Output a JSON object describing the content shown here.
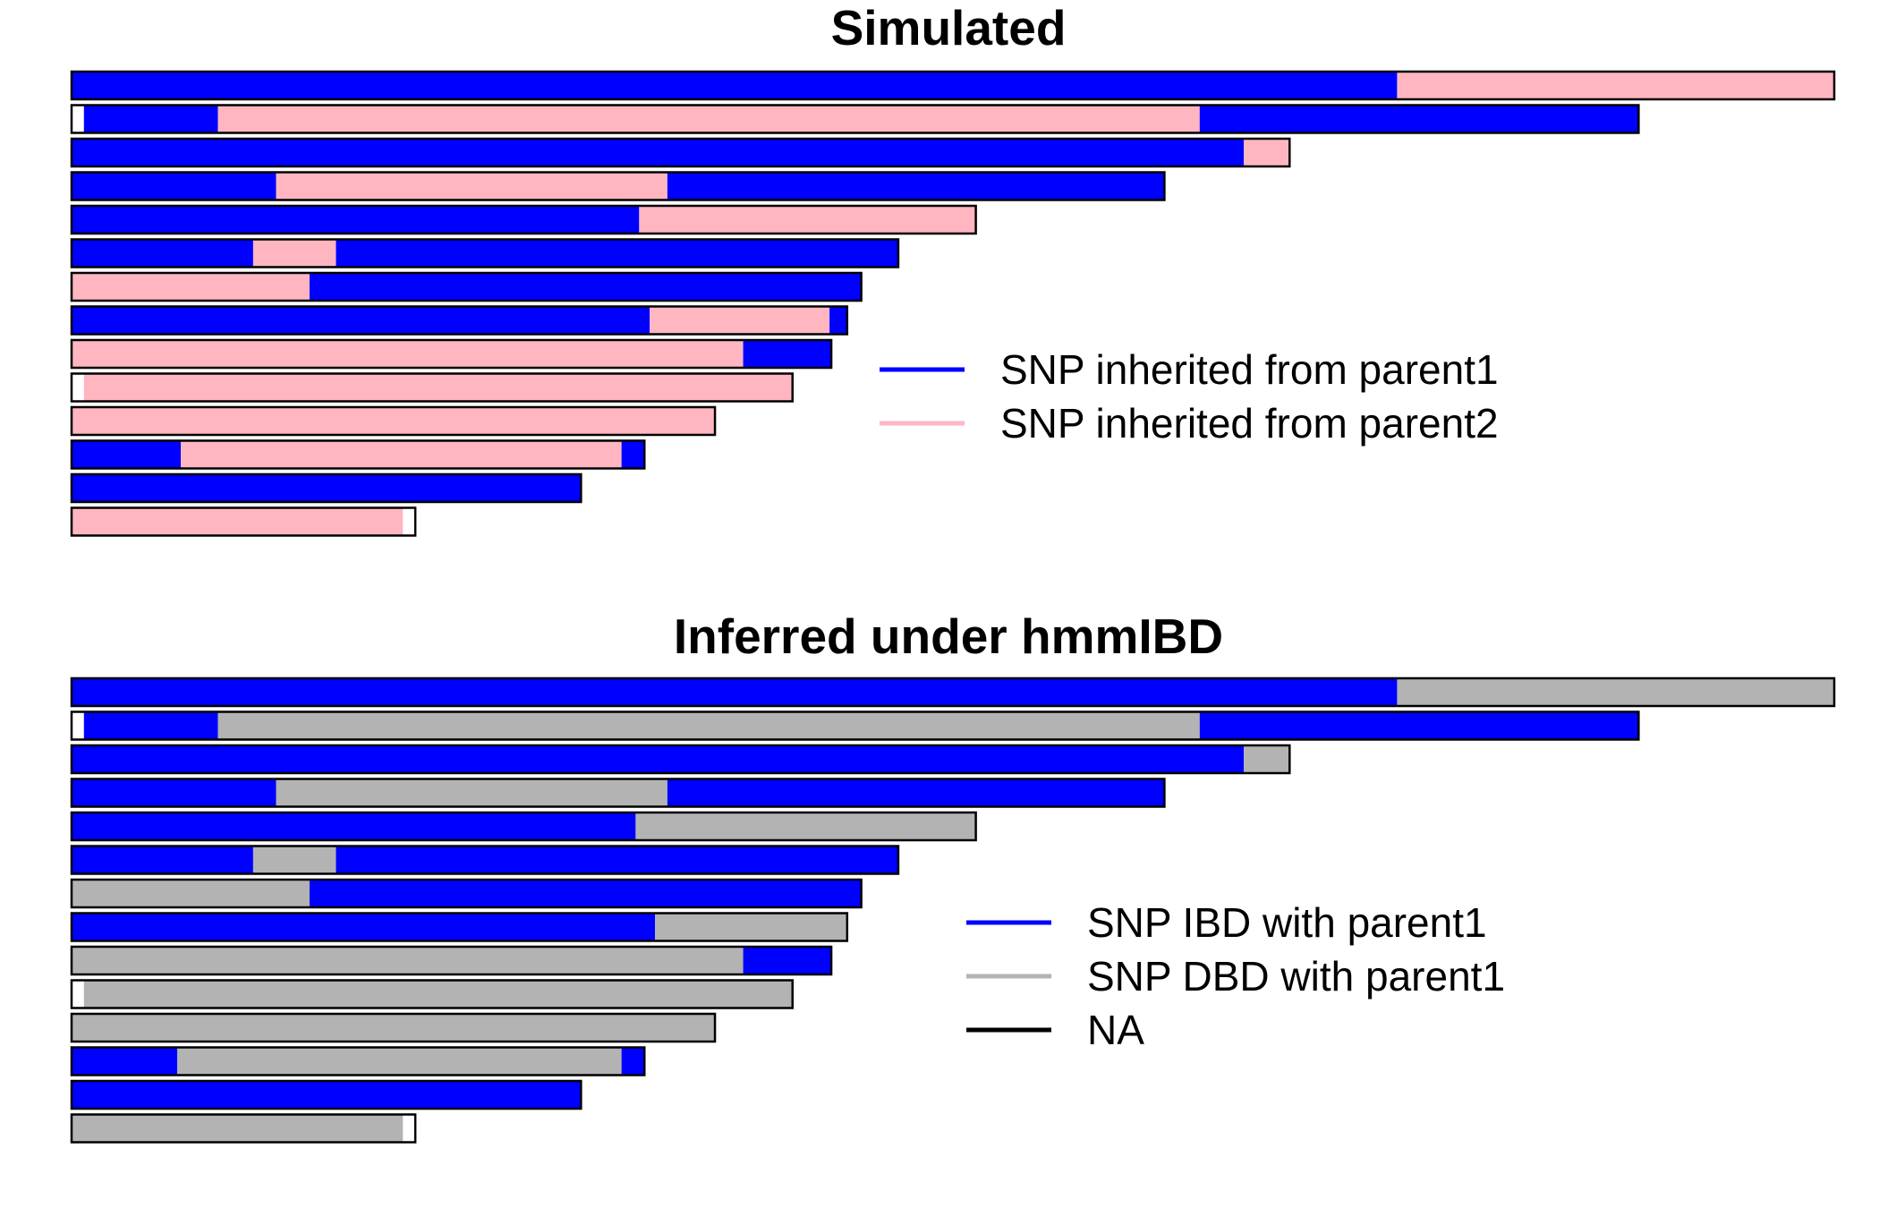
{
  "colors": {
    "parent1": "#0000FF",
    "parent2": "#FFB6C1",
    "dbd": "#B3B3B3",
    "na": "#FFFFFF",
    "outline": "#000000"
  },
  "chart_data": [
    {
      "type": "chromosome-painting",
      "title": "Simulated",
      "x_unit": "fraction of longest chromosome",
      "legend": [
        {
          "label": "SNP inherited from parent1",
          "color": "#0000FF"
        },
        {
          "label": "SNP inherited from parent2",
          "color": "#FFB6C1"
        }
      ],
      "chromosomes": [
        {
          "length": 1.0,
          "segments": [
            [
              "p1",
              0,
              0.752
            ],
            [
              "p2",
              0.752,
              1.0
            ]
          ]
        },
        {
          "length": 0.889,
          "segments": [
            [
              "na",
              0,
              0.007
            ],
            [
              "p1",
              0.007,
              0.083
            ],
            [
              "p2",
              0.083,
              0.64
            ],
            [
              "p1",
              0.64,
              0.889
            ]
          ]
        },
        {
          "length": 0.691,
          "segments": [
            [
              "p1",
              0,
              0.665
            ],
            [
              "p2",
              0.665,
              0.691
            ]
          ]
        },
        {
          "length": 0.62,
          "segments": [
            [
              "p1",
              0,
              0.116
            ],
            [
              "p2",
              0.116,
              0.338
            ],
            [
              "p1",
              0.338,
              0.62
            ]
          ]
        },
        {
          "length": 0.513,
          "segments": [
            [
              "p1",
              0,
              0.322
            ],
            [
              "p2",
              0.322,
              0.513
            ]
          ]
        },
        {
          "length": 0.469,
          "segments": [
            [
              "p1",
              0,
              0.103
            ],
            [
              "p2",
              0.103,
              0.15
            ],
            [
              "p1",
              0.15,
              0.469
            ]
          ]
        },
        {
          "length": 0.448,
          "segments": [
            [
              "p2",
              0,
              0.135
            ],
            [
              "p1",
              0.135,
              0.448
            ]
          ]
        },
        {
          "length": 0.44,
          "segments": [
            [
              "p1",
              0,
              0.328
            ],
            [
              "p2",
              0.328,
              0.43
            ],
            [
              "p1",
              0.43,
              0.44
            ]
          ]
        },
        {
          "length": 0.431,
          "segments": [
            [
              "p2",
              0,
              0.381
            ],
            [
              "p1",
              0.381,
              0.431
            ]
          ]
        },
        {
          "length": 0.409,
          "segments": [
            [
              "na",
              0,
              0.007
            ],
            [
              "p2",
              0.007,
              0.409
            ]
          ]
        },
        {
          "length": 0.365,
          "segments": [
            [
              "p2",
              0,
              0.365
            ]
          ]
        },
        {
          "length": 0.325,
          "segments": [
            [
              "p1",
              0,
              0.062
            ],
            [
              "p2",
              0.062,
              0.312
            ],
            [
              "p1",
              0.312,
              0.325
            ]
          ]
        },
        {
          "length": 0.289,
          "segments": [
            [
              "p1",
              0,
              0.289
            ]
          ]
        },
        {
          "length": 0.195,
          "segments": [
            [
              "p2",
              0,
              0.188
            ],
            [
              "na",
              0.188,
              0.195
            ]
          ]
        }
      ]
    },
    {
      "type": "chromosome-painting",
      "title": "Inferred under hmmIBD",
      "x_unit": "fraction of longest chromosome",
      "legend": [
        {
          "label": "SNP IBD with parent1",
          "color": "#0000FF"
        },
        {
          "label": "SNP DBD with parent1",
          "color": "#B3B3B3"
        },
        {
          "label": "NA",
          "color": "#000000"
        }
      ],
      "chromosomes": [
        {
          "length": 1.0,
          "segments": [
            [
              "ibd",
              0,
              0.752
            ],
            [
              "dbd",
              0.752,
              1.0
            ]
          ]
        },
        {
          "length": 0.889,
          "segments": [
            [
              "na",
              0,
              0.007
            ],
            [
              "ibd",
              0.007,
              0.083
            ],
            [
              "dbd",
              0.083,
              0.64
            ],
            [
              "ibd",
              0.64,
              0.889
            ]
          ]
        },
        {
          "length": 0.691,
          "segments": [
            [
              "ibd",
              0,
              0.665
            ],
            [
              "dbd",
              0.665,
              0.691
            ]
          ]
        },
        {
          "length": 0.62,
          "segments": [
            [
              "ibd",
              0,
              0.116
            ],
            [
              "dbd",
              0.116,
              0.338
            ],
            [
              "ibd",
              0.338,
              0.62
            ]
          ]
        },
        {
          "length": 0.513,
          "segments": [
            [
              "ibd",
              0,
              0.32
            ],
            [
              "dbd",
              0.32,
              0.513
            ]
          ]
        },
        {
          "length": 0.469,
          "segments": [
            [
              "ibd",
              0,
              0.103
            ],
            [
              "dbd",
              0.103,
              0.15
            ],
            [
              "ibd",
              0.15,
              0.469
            ]
          ]
        },
        {
          "length": 0.448,
          "segments": [
            [
              "dbd",
              0,
              0.135
            ],
            [
              "ibd",
              0.135,
              0.448
            ]
          ]
        },
        {
          "length": 0.44,
          "segments": [
            [
              "ibd",
              0,
              0.331
            ],
            [
              "dbd",
              0.331,
              0.44
            ]
          ]
        },
        {
          "length": 0.431,
          "segments": [
            [
              "dbd",
              0,
              0.381
            ],
            [
              "ibd",
              0.381,
              0.431
            ]
          ]
        },
        {
          "length": 0.409,
          "segments": [
            [
              "na",
              0,
              0.007
            ],
            [
              "dbd",
              0.007,
              0.409
            ]
          ]
        },
        {
          "length": 0.365,
          "segments": [
            [
              "dbd",
              0,
              0.365
            ]
          ]
        },
        {
          "length": 0.325,
          "segments": [
            [
              "ibd",
              0,
              0.06
            ],
            [
              "dbd",
              0.06,
              0.312
            ],
            [
              "ibd",
              0.312,
              0.325
            ]
          ]
        },
        {
          "length": 0.289,
          "segments": [
            [
              "ibd",
              0,
              0.289
            ]
          ]
        },
        {
          "length": 0.195,
          "segments": [
            [
              "dbd",
              0,
              0.188
            ],
            [
              "na",
              0.188,
              0.195
            ]
          ]
        }
      ]
    }
  ]
}
